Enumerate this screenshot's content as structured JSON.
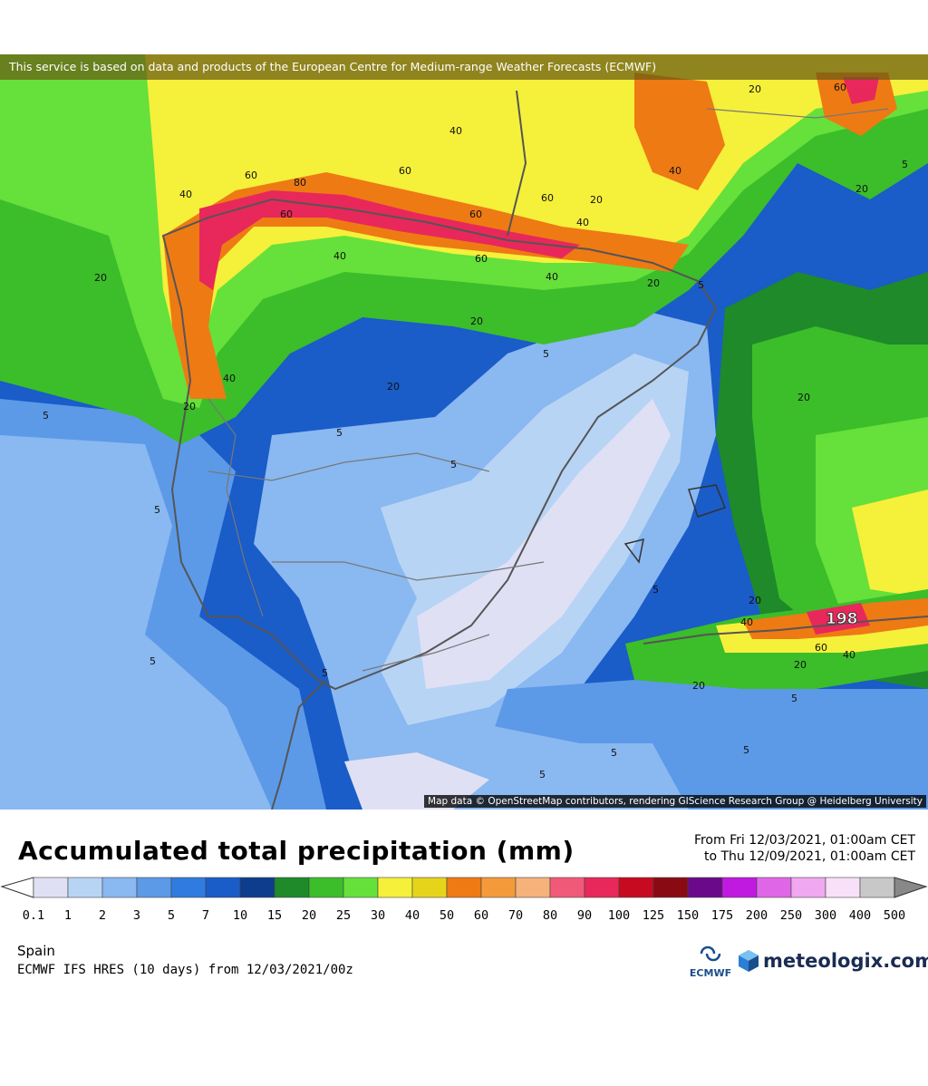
{
  "map": {
    "attribution_top": "This service is based on data and products of the European Centre for Medium-range Weather Forecasts (ECMWF)",
    "attribution_bottom": "Map data © OpenStreetMap contributors, rendering GIScience Research Group @ Heidelberg University",
    "max_value_label": "198",
    "contour_labels": [
      "5",
      "20",
      "40",
      "60",
      "80"
    ]
  },
  "header": {
    "title": "Accumulated total precipitation (mm)",
    "period_from": "From Fri 12/03/2021, 01:00am CET",
    "period_to": "to Thu 12/09/2021, 01:00am CET"
  },
  "legend": {
    "ticks": [
      "0.1",
      "1",
      "2",
      "3",
      "5",
      "7",
      "10",
      "15",
      "20",
      "25",
      "30",
      "40",
      "50",
      "60",
      "70",
      "80",
      "90",
      "100",
      "125",
      "150",
      "175",
      "200",
      "250",
      "300",
      "400",
      "500"
    ],
    "colors": [
      "#e0e0f5",
      "#b8d4f5",
      "#8ab8f0",
      "#5c9ae8",
      "#2f7be0",
      "#1a5cc8",
      "#0d3d8c",
      "#1e8a2a",
      "#3cbd2a",
      "#66e03a",
      "#f5f03a",
      "#e6d41a",
      "#ee7a14",
      "#f59a3a",
      "#f5b27a",
      "#f05a78",
      "#e8285a",
      "#c80a20",
      "#8a0a14",
      "#6a0a8a",
      "#c01ae0",
      "#e066e8",
      "#f0a8f0",
      "#f8e0f8",
      "#c8c8c8"
    ]
  },
  "footer": {
    "region": "Spain",
    "model": "ECMWF IFS HRES (10 days) from 12/03/2021/00z",
    "ecmwf_logo_text": "ECMWF",
    "brand": "meteologix.com"
  }
}
